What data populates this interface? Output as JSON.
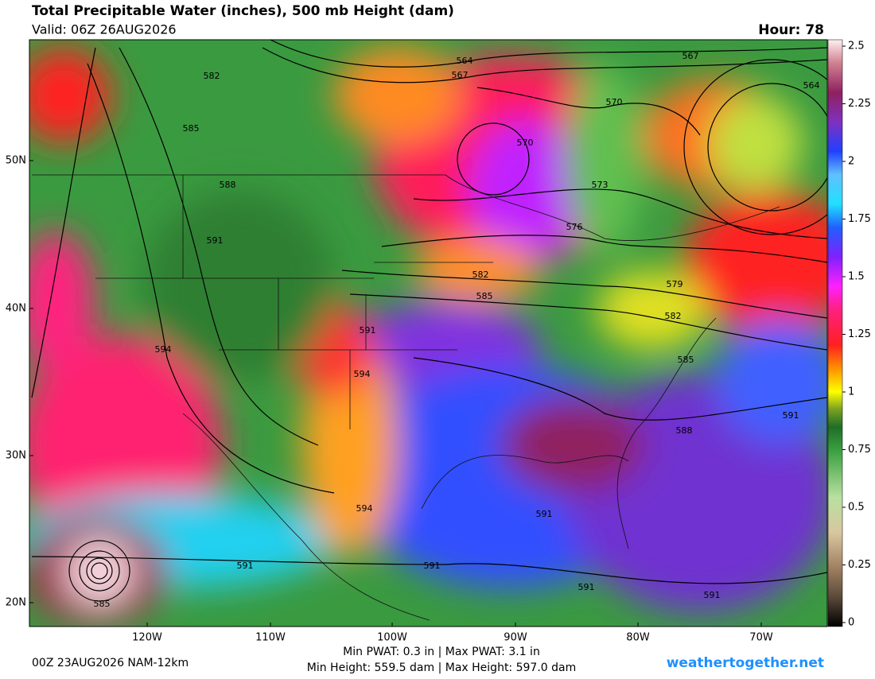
{
  "header": {
    "title": "Total Precipitable Water (inches), 500 mb Height (dam)",
    "valid": "Valid: 06Z 26AUG2026",
    "hour": "Hour: 78"
  },
  "colorbar": {
    "range": [
      0,
      2.5
    ],
    "ticks": [
      0,
      0.25,
      0.5,
      0.75,
      1,
      1.25,
      1.5,
      1.75,
      2,
      2.25,
      2.5
    ]
  },
  "map": {
    "lat_labels": [
      "50N",
      "40N",
      "30N",
      "20N"
    ],
    "lon_labels": [
      "120W",
      "110W",
      "100W",
      "90W",
      "80W",
      "70W"
    ],
    "contour_labels": [
      "564",
      "567",
      "567",
      "564",
      "570",
      "570",
      "573",
      "576",
      "582",
      "585",
      "588",
      "591",
      "594",
      "579",
      "582",
      "585",
      "582",
      "591",
      "594",
      "585",
      "591",
      "588",
      "594",
      "591",
      "591",
      "591",
      "591",
      "591",
      "585"
    ]
  },
  "footer": {
    "run": "00Z 23AUG2026 NAM-12km",
    "stats": [
      "Min PWAT:   0.3 in | Max PWAT:   3.1 in",
      "Min Height: 559.5 dam | Max Height: 597.0 dam"
    ],
    "site": "weathertogether.net"
  }
}
